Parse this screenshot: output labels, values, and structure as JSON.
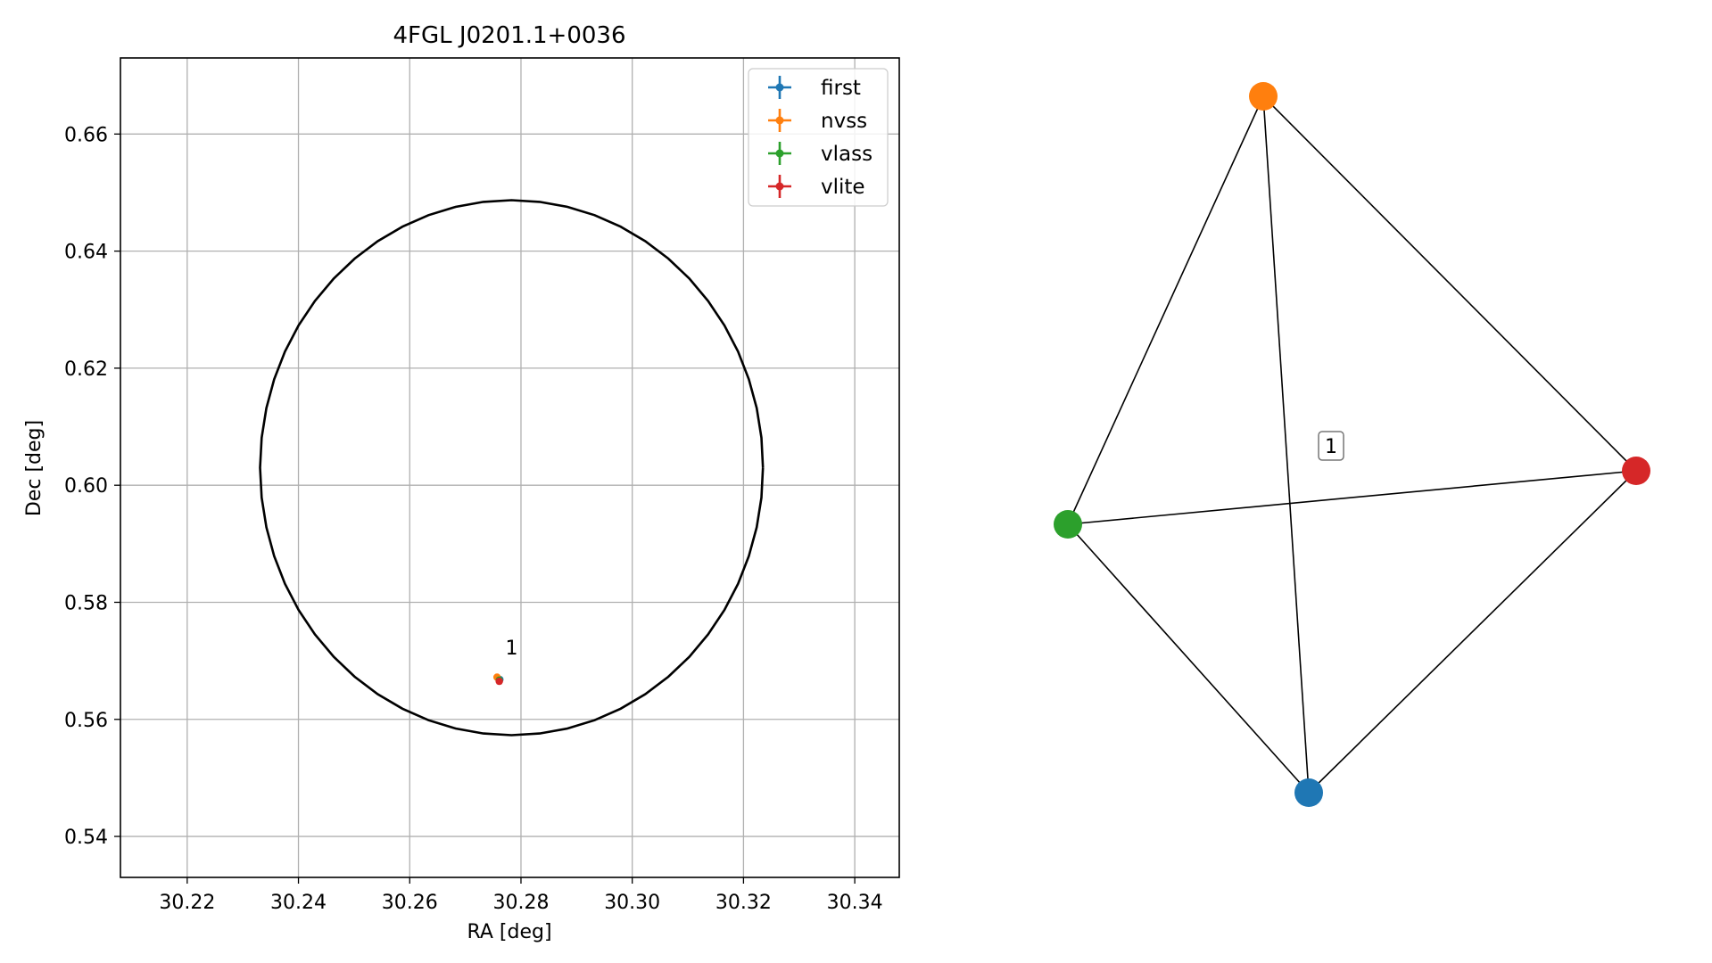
{
  "chart_data": [
    {
      "type": "scatter",
      "title": "4FGL J0201.1+0036",
      "xlabel": "RA [deg]",
      "ylabel": "Dec [deg]",
      "xlim": [
        30.208,
        30.348
      ],
      "ylim": [
        0.533,
        0.673
      ],
      "grid": true,
      "xticks": [
        30.22,
        30.24,
        30.26,
        30.28,
        30.3,
        30.32,
        30.34
      ],
      "yticks": [
        0.54,
        0.56,
        0.58,
        0.6,
        0.62,
        0.64,
        0.66
      ],
      "xtick_labels": [
        "30.22",
        "30.24",
        "30.26",
        "30.28",
        "30.30",
        "30.32",
        "30.34"
      ],
      "ytick_labels": [
        "0.54",
        "0.56",
        "0.58",
        "0.60",
        "0.62",
        "0.64",
        "0.66"
      ],
      "ellipse": {
        "center": [
          30.2783,
          0.603
        ],
        "rx": 0.0452,
        "ry": 0.0457,
        "color": "#000000"
      },
      "legend": {
        "placement": "top-right"
      },
      "series": [
        {
          "name": "first",
          "color": "#1f77b4",
          "x": [
            30.2762
          ],
          "y": [
            0.5668
          ]
        },
        {
          "name": "nvss",
          "color": "#ff7f0e",
          "x": [
            30.2757
          ],
          "y": [
            0.5672
          ]
        },
        {
          "name": "vlass",
          "color": "#2ca02c",
          "x": [
            30.2761
          ],
          "y": [
            0.5667
          ]
        },
        {
          "name": "vlite",
          "color": "#d62728",
          "x": [
            30.2761
          ],
          "y": [
            0.5665
          ]
        }
      ],
      "annotations": [
        {
          "text": "1",
          "x": 30.2772,
          "y": 0.57
        }
      ]
    },
    {
      "type": "graph",
      "nodes": [
        {
          "name": "first",
          "color": "#1f77b4"
        },
        {
          "name": "nvss",
          "color": "#ff7f0e"
        },
        {
          "name": "vlass",
          "color": "#2ca02c"
        },
        {
          "name": "vlite",
          "color": "#d62728"
        }
      ],
      "edges": [
        [
          "nvss",
          "vlass"
        ],
        [
          "nvss",
          "first"
        ],
        [
          "nvss",
          "vlite"
        ],
        [
          "vlass",
          "vlite"
        ],
        [
          "vlass",
          "first"
        ],
        [
          "first",
          "vlite"
        ]
      ],
      "label": "1"
    }
  ]
}
